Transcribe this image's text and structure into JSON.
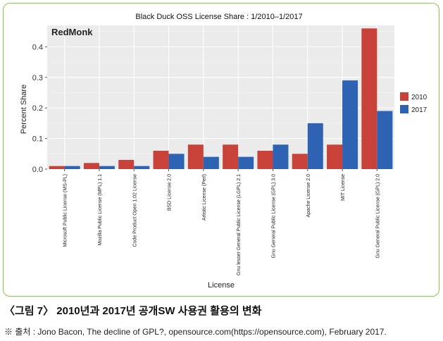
{
  "caption": "〈그림 7〉 2010년과 2017년 공개SW 사용권 활용의 변화",
  "source": "※ 출처 : Jono Bacon, The decline of GPL?, opensource.com(https://opensource.com), February 2017.",
  "colors": {
    "panel": "#ebebeb",
    "grid": "#ffffff",
    "frame": "#8cc63f"
  },
  "chart_data": {
    "type": "bar",
    "title": "Black Duck OSS License Share : 1/2010–1/2017",
    "watermark": "RedMonk",
    "xlabel": "License",
    "ylabel": "Percent Share",
    "ylim": [
      0,
      0.47
    ],
    "yticks": [
      0.0,
      0.1,
      0.2,
      0.3,
      0.4
    ],
    "ytick_labels": [
      "0.0",
      "0.1",
      "0.2",
      "0.3",
      "0.4"
    ],
    "grid": true,
    "legend_position": "right",
    "categories": [
      "Microsoft Public License (MS-PL)",
      "Mozilla Public License (MPL) 1.1",
      "Code Product Open 1.02 License",
      "BSD License 2.0",
      "Artistic License (Perl)",
      "Gnu lesser General Public License (LGPL) 2.1",
      "Gnu General Public License (GPL) 3.0",
      "Apache License 2.0",
      "MIT License",
      "Gnu General Public License (GPL) 2.0"
    ],
    "series": [
      {
        "name": "2010",
        "color": "#c8423a",
        "values": [
          0.01,
          0.02,
          0.03,
          0.06,
          0.08,
          0.08,
          0.06,
          0.05,
          0.08,
          0.46
        ]
      },
      {
        "name": "2017",
        "color": "#2e63b4",
        "values": [
          0.01,
          0.01,
          0.01,
          0.05,
          0.04,
          0.04,
          0.08,
          0.15,
          0.29,
          0.19
        ]
      }
    ]
  }
}
